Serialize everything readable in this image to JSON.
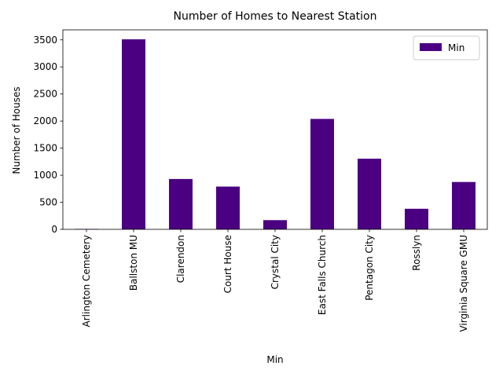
{
  "chart_data": {
    "type": "bar",
    "title": "Number of Homes to Nearest Station",
    "xlabel": "Min",
    "ylabel": "Number of Houses",
    "categories": [
      "Arlington Cemetery",
      "Ballston MU",
      "Clarendon",
      "Court House",
      "Crystal City",
      "East Falls Church",
      "Pentagon City",
      "Rosslyn",
      "Virginia Square GMU"
    ],
    "series": [
      {
        "name": "Min",
        "color": "#4b0082",
        "values": [
          8,
          3510,
          930,
          790,
          170,
          2040,
          1305,
          380,
          875
        ]
      }
    ],
    "ylim": [
      0,
      3685
    ],
    "yticks": [
      0,
      500,
      1000,
      1500,
      2000,
      2500,
      3000,
      3500
    ],
    "grid": false,
    "legend": {
      "position": "top-right",
      "entries": [
        "Min"
      ]
    }
  }
}
